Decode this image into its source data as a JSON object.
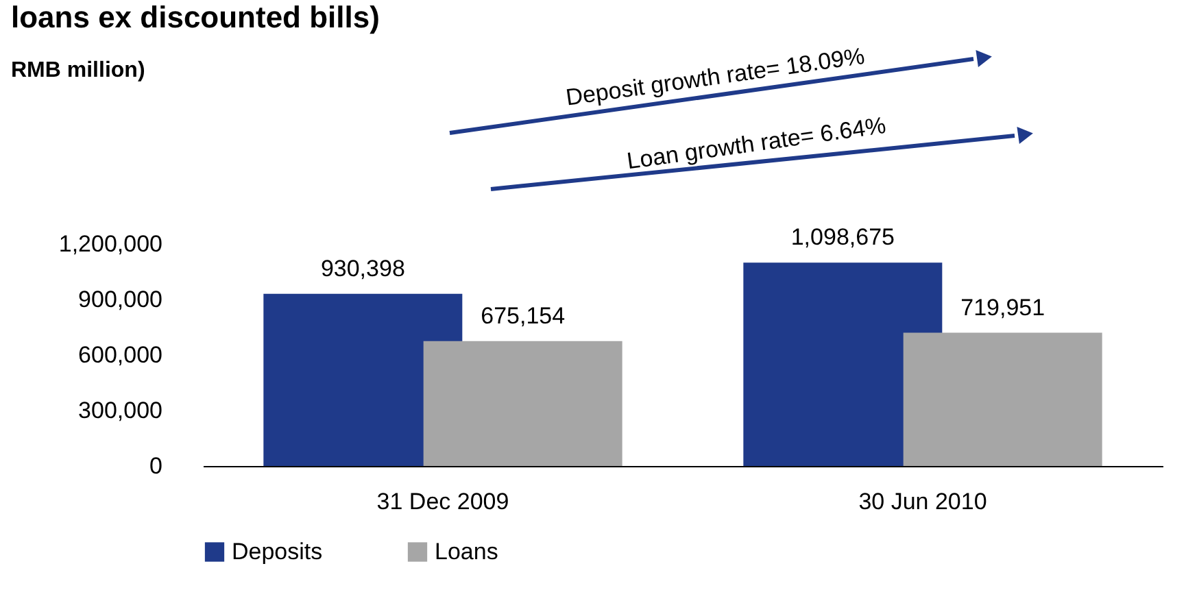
{
  "chart_data": {
    "type": "bar",
    "title": "loans ex discounted bills)",
    "subtitle": "RMB million)",
    "categories": [
      "31 Dec 2009",
      "30 Jun 2010"
    ],
    "series": [
      {
        "name": "Deposits",
        "color": "#1f3a8a",
        "values": [
          930398,
          1098675
        ],
        "value_labels": [
          "930,398",
          "1,098,675"
        ]
      },
      {
        "name": "Loans",
        "color": "#a6a6a6",
        "values": [
          675154,
          719951
        ],
        "value_labels": [
          "675,154",
          "719,951"
        ]
      }
    ],
    "ylim": [
      0,
      1200000
    ],
    "yticks": [
      0,
      {
        "value": 300000,
        "label": "300,000"
      },
      {
        "value": 600000,
        "label": "600,000"
      },
      {
        "value": 900000,
        "label": "900,000"
      },
      {
        "value": 1200000,
        "label": "1,200,000"
      }
    ],
    "grid": false,
    "legend": "bottom",
    "annotations": [
      "Deposit growth rate= 18.09%",
      "Loan growth rate= 6.64%"
    ]
  }
}
